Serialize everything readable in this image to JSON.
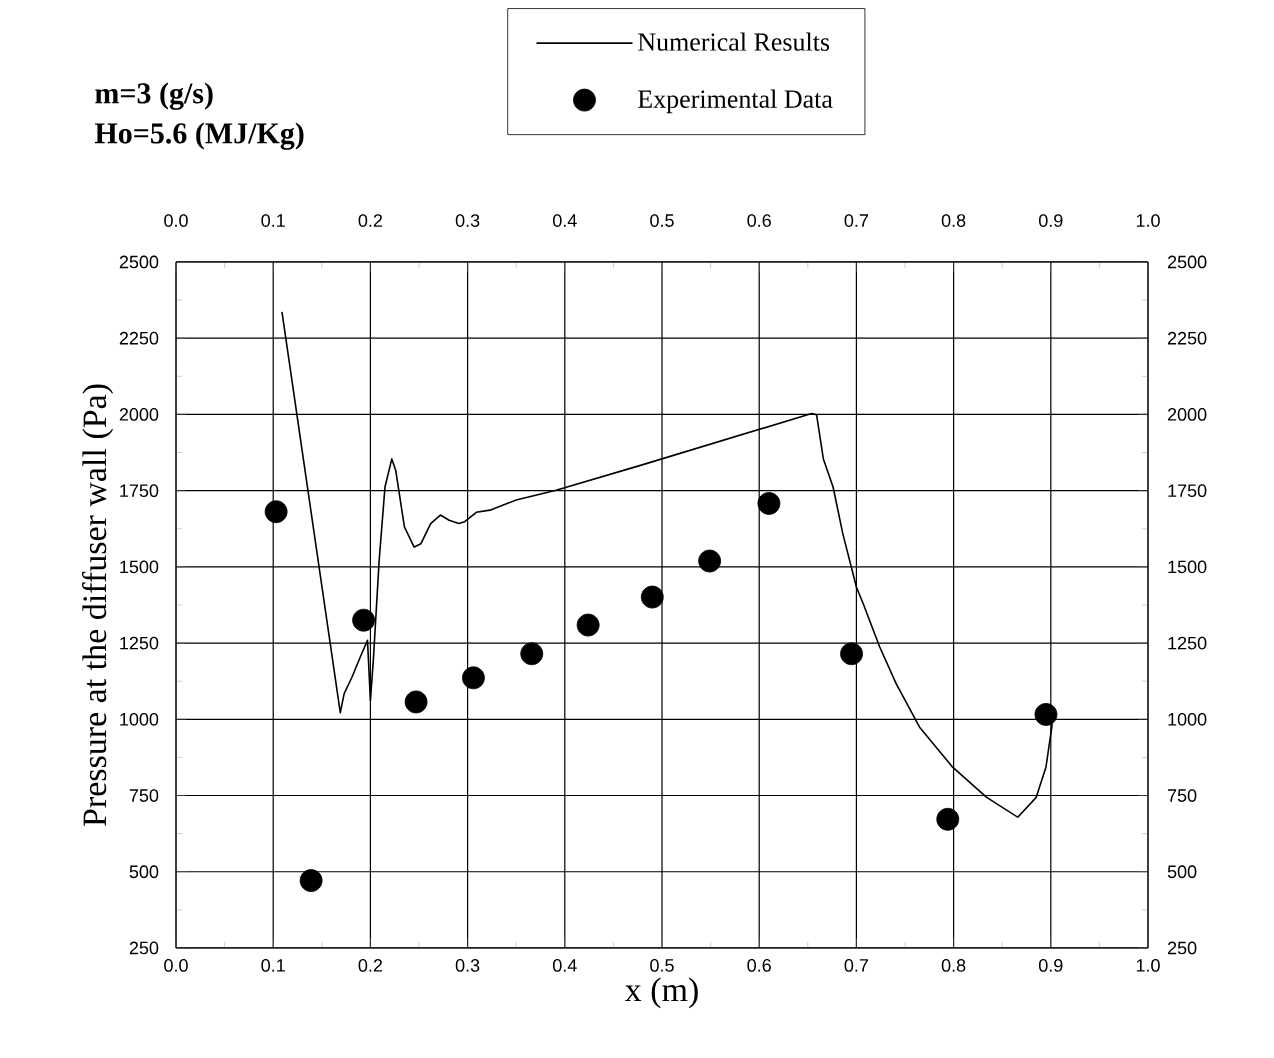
{
  "chart_data": {
    "type": "line",
    "xlabel": "x (m)",
    "ylabel": "Pressure at the diffuser wall (Pa)",
    "annotations": [
      "m=3 (g/s)",
      "Ho=5.6 (MJ/Kg)"
    ],
    "xlim": [
      0,
      1
    ],
    "xticks": [
      {
        "value": 0,
        "label": "0.0"
      },
      0.1,
      0.2,
      0.3,
      0.4,
      0.5,
      0.6,
      0.7,
      0.8,
      0.9,
      {
        "value": 1,
        "label": "1.0"
      }
    ],
    "x2lim": [
      0,
      1
    ],
    "x2ticks": [
      {
        "value": 0,
        "label": "0.0"
      },
      0.1,
      0.2,
      0.3,
      0.4,
      0.5,
      0.6,
      0.7,
      0.8,
      0.9,
      {
        "value": 1,
        "label": "1.0"
      }
    ],
    "ylim": [
      250,
      2500
    ],
    "yticks": [
      250,
      500,
      750,
      1000,
      1250,
      1500,
      1750,
      2000,
      2250,
      2500
    ],
    "y2lim": [
      250,
      2500
    ],
    "y2ticks": [
      250,
      500,
      750,
      1000,
      1250,
      1500,
      1750,
      2000,
      2250,
      2500
    ],
    "grid": true,
    "legend": "top",
    "series": [
      {
        "name": "Numerical Results",
        "color": "#000000",
        "marker": "none",
        "line_style": "solid",
        "x": [
          0.109,
          0.169,
          0.173,
          0.181,
          0.191,
          0.197,
          0.2,
          0.203,
          0.209,
          0.215,
          0.222,
          0.226,
          0.235,
          0.245,
          0.252,
          0.262,
          0.272,
          0.281,
          0.291,
          0.297,
          0.309,
          0.323,
          0.35,
          0.391,
          0.477,
          0.654,
          0.659,
          0.666,
          0.676,
          0.686,
          0.7,
          0.707,
          0.724,
          0.741,
          0.765,
          0.799,
          0.834,
          0.866,
          0.885,
          0.895,
          0.901,
          0.902
        ],
        "values": [
          2336,
          1022,
          1084,
          1138,
          1215,
          1259,
          1062,
          1193,
          1521,
          1762,
          1854,
          1817,
          1631,
          1565,
          1576,
          1642,
          1670,
          1653,
          1642,
          1648,
          1679,
          1686,
          1719,
          1751,
          1832,
          2003,
          1999,
          1854,
          1762,
          1609,
          1434,
          1379,
          1237,
          1116,
          974,
          843,
          744,
          679,
          744,
          843,
          974,
          1014
        ]
      },
      {
        "name": "Experimental Data",
        "type": "scatter",
        "color": "#000000",
        "marker": "circle",
        "x": [
          0.103,
          0.139,
          0.193,
          0.247,
          0.306,
          0.366,
          0.424,
          0.49,
          0.549,
          0.61,
          0.695,
          0.794,
          0.895
        ],
        "values": [
          1681,
          471,
          1325,
          1057,
          1136,
          1215,
          1309,
          1401,
          1519,
          1708,
          1215,
          672,
          1016
        ]
      }
    ]
  }
}
